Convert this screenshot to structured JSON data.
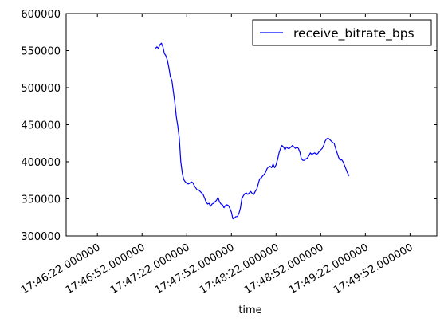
{
  "chart_data": {
    "type": "line",
    "title": "",
    "xlabel": "time",
    "ylabel": "",
    "x_tick_labels": [
      "17:46:22.000000",
      "17:46:52.000000",
      "17:47:22.000000",
      "17:47:52.000000",
      "17:48:22.000000",
      "17:48:52.000000",
      "17:49:22.000000",
      "17:49:52.000000"
    ],
    "x_tick_seconds": [
      0,
      30,
      60,
      90,
      120,
      150,
      180,
      210
    ],
    "xlim_seconds": [
      -21,
      228
    ],
    "y_tick_labels": [
      "300000",
      "350000",
      "400000",
      "450000",
      "500000",
      "550000",
      "600000"
    ],
    "ylim": [
      300000,
      600000
    ],
    "legend": {
      "position": "top-right",
      "entries": [
        "receive_bitrate_bps"
      ]
    },
    "grid": false,
    "series": [
      {
        "name": "receive_bitrate_bps",
        "color": "#0000ff",
        "points": [
          [
            39,
            553000
          ],
          [
            40,
            555000
          ],
          [
            41,
            553000
          ],
          [
            42,
            558000
          ],
          [
            43,
            560000
          ],
          [
            44,
            555000
          ],
          [
            45,
            546000
          ],
          [
            46,
            543000
          ],
          [
            47,
            537000
          ],
          [
            48,
            527000
          ],
          [
            49,
            515000
          ],
          [
            50,
            510000
          ],
          [
            51,
            495000
          ],
          [
            52,
            480000
          ],
          [
            53,
            461000
          ],
          [
            54,
            448000
          ],
          [
            55,
            432000
          ],
          [
            56,
            400000
          ],
          [
            57,
            385000
          ],
          [
            58,
            376000
          ],
          [
            59,
            373000
          ],
          [
            60,
            371000
          ],
          [
            61,
            370000
          ],
          [
            62,
            371000
          ],
          [
            63,
            373000
          ],
          [
            64,
            372000
          ],
          [
            65,
            368000
          ],
          [
            66,
            365000
          ],
          [
            67,
            362000
          ],
          [
            68,
            362000
          ],
          [
            69,
            360000
          ],
          [
            70,
            358000
          ],
          [
            71,
            356000
          ],
          [
            72,
            351000
          ],
          [
            73,
            346000
          ],
          [
            74,
            343000
          ],
          [
            75,
            344000
          ],
          [
            76,
            340000
          ],
          [
            77,
            343000
          ],
          [
            78,
            344000
          ],
          [
            79,
            346000
          ],
          [
            80,
            348000
          ],
          [
            81,
            352000
          ],
          [
            82,
            346000
          ],
          [
            83,
            343000
          ],
          [
            84,
            342000
          ],
          [
            85,
            338000
          ],
          [
            86,
            341000
          ],
          [
            87,
            342000
          ],
          [
            88,
            341000
          ],
          [
            89,
            337000
          ],
          [
            90,
            332000
          ],
          [
            91,
            323000
          ],
          [
            92,
            324000
          ],
          [
            93,
            326000
          ],
          [
            94,
            326000
          ],
          [
            95,
            330000
          ],
          [
            96,
            337000
          ],
          [
            97,
            350000
          ],
          [
            98,
            354000
          ],
          [
            99,
            357000
          ],
          [
            100,
            358000
          ],
          [
            101,
            356000
          ],
          [
            102,
            358000
          ],
          [
            103,
            360000
          ],
          [
            104,
            357000
          ],
          [
            105,
            356000
          ],
          [
            106,
            360000
          ],
          [
            107,
            363000
          ],
          [
            108,
            370000
          ],
          [
            109,
            377000
          ],
          [
            110,
            378000
          ],
          [
            111,
            381000
          ],
          [
            112,
            383000
          ],
          [
            113,
            386000
          ],
          [
            114,
            391000
          ],
          [
            115,
            393000
          ],
          [
            116,
            394000
          ],
          [
            117,
            392000
          ],
          [
            118,
            397000
          ],
          [
            119,
            392000
          ],
          [
            120,
            396000
          ],
          [
            121,
            403000
          ],
          [
            122,
            412000
          ],
          [
            123,
            418000
          ],
          [
            124,
            422000
          ],
          [
            125,
            420000
          ],
          [
            126,
            416000
          ],
          [
            127,
            420000
          ],
          [
            128,
            418000
          ],
          [
            129,
            418000
          ],
          [
            130,
            420000
          ],
          [
            131,
            422000
          ],
          [
            132,
            420000
          ],
          [
            133,
            418000
          ],
          [
            134,
            420000
          ],
          [
            135,
            418000
          ],
          [
            136,
            413000
          ],
          [
            137,
            404000
          ],
          [
            138,
            402000
          ],
          [
            139,
            402000
          ],
          [
            140,
            404000
          ],
          [
            141,
            405000
          ],
          [
            142,
            408000
          ],
          [
            143,
            412000
          ],
          [
            144,
            410000
          ],
          [
            145,
            411000
          ],
          [
            146,
            412000
          ],
          [
            147,
            410000
          ],
          [
            148,
            411000
          ],
          [
            149,
            414000
          ],
          [
            150,
            416000
          ],
          [
            151,
            418000
          ],
          [
            152,
            422000
          ],
          [
            153,
            428000
          ],
          [
            154,
            431000
          ],
          [
            155,
            432000
          ],
          [
            156,
            430000
          ],
          [
            157,
            428000
          ],
          [
            158,
            426000
          ],
          [
            159,
            425000
          ],
          [
            160,
            418000
          ],
          [
            161,
            412000
          ],
          [
            162,
            406000
          ],
          [
            163,
            402000
          ],
          [
            164,
            403000
          ],
          [
            165,
            400000
          ],
          [
            166,
            395000
          ],
          [
            167,
            390000
          ],
          [
            168,
            385000
          ],
          [
            169,
            381000
          ]
        ]
      }
    ]
  }
}
